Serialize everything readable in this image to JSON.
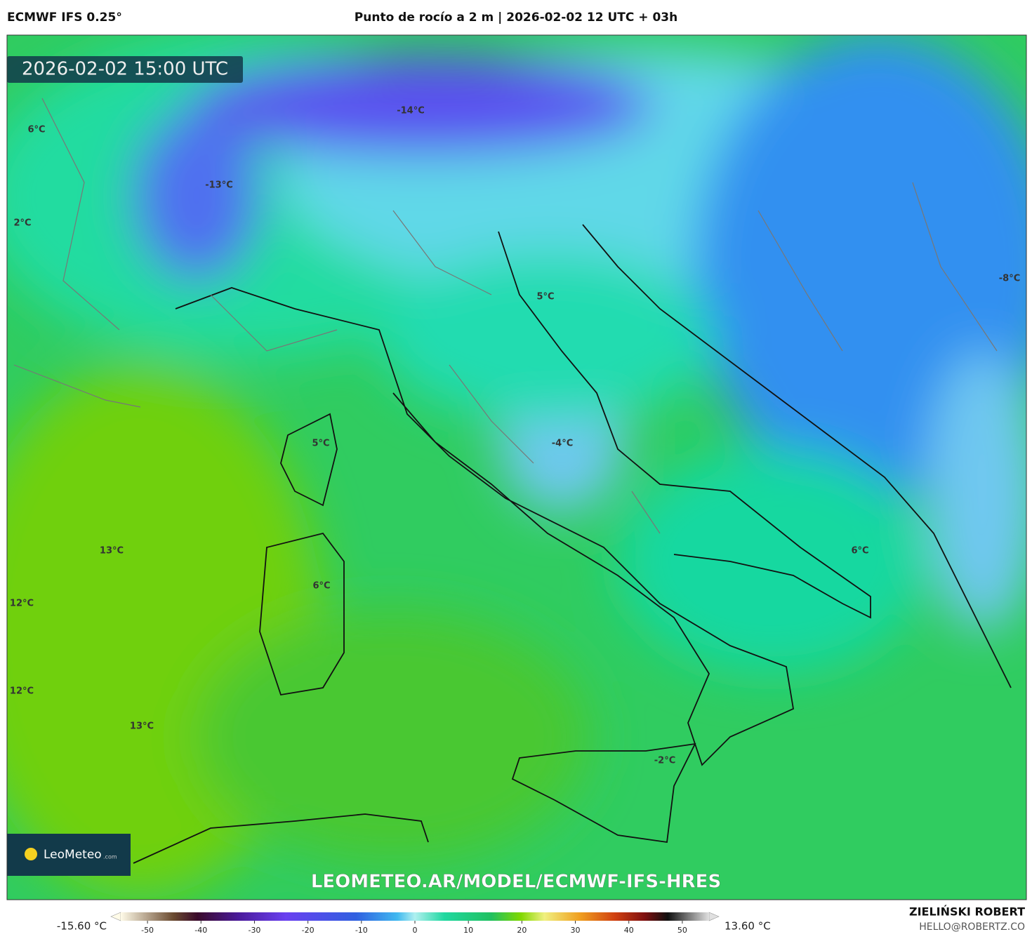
{
  "header": {
    "model": "ECMWF IFS 0.25°",
    "title": "Punto de rocío a 2 m | 2026-02-02 12 UTC + 03h"
  },
  "map": {
    "timestamp": "2026-02-02 15:00 UTC",
    "labels": [
      "6°C",
      "2°C",
      "-13°C",
      "-14°C",
      "5°C",
      "-8°C",
      "5°C",
      "-4°C",
      "13°C",
      "6°C",
      "12°C",
      "6°C",
      "12°C",
      "13°C",
      "-2°C"
    ],
    "logo": {
      "name": "LeoMeteo",
      "suffix": ".com"
    },
    "url": "LEOMETEO.AR/MODEL/ECMWF-IFS-HRES"
  },
  "colorbar": {
    "min_label": "-15.60 °C",
    "max_label": "13.60 °C",
    "range": [
      -55,
      55
    ],
    "ticks": [
      -50,
      -40,
      -30,
      -20,
      -10,
      0,
      10,
      20,
      30,
      40,
      50
    ]
  },
  "footer": {
    "author": "ZIELIŃSKI ROBERT",
    "email": "HELLO@ROBERTZ.CO"
  }
}
